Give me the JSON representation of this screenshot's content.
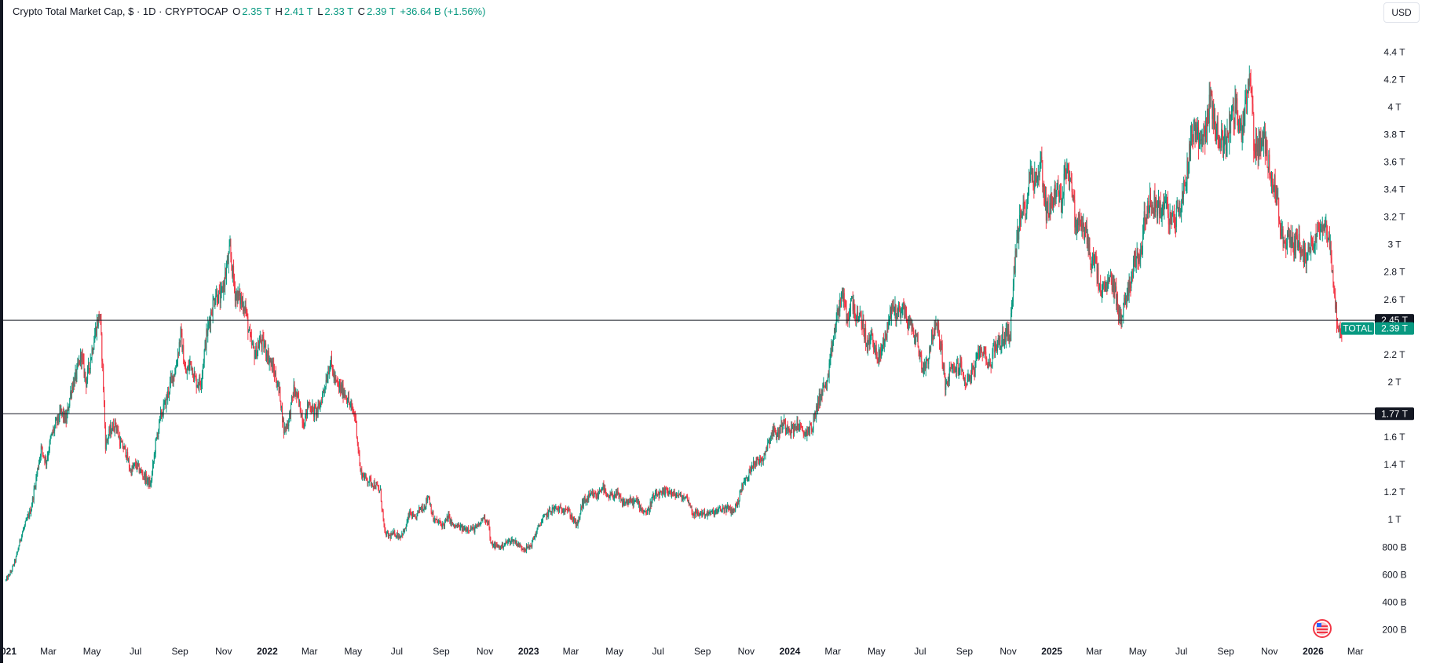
{
  "legend": {
    "title": "Crypto Total Market Cap, $ · 1D · CRYPTOCAP",
    "o_label": "O",
    "o_value": "2.35 T",
    "h_label": "H",
    "h_value": "2.41 T",
    "l_label": "L",
    "l_value": "2.33 T",
    "c_label": "C",
    "c_value": "2.39 T",
    "change": "+36.64 B (+1.56%)"
  },
  "currency_button": "USD",
  "colors": {
    "up": "#089981",
    "down": "#f23645",
    "line": "#131722",
    "axis_text": "#131722"
  },
  "chart_data": {
    "type": "candlestick",
    "symbol": "TOTAL",
    "interval": "1D",
    "y_axis_ticks": [
      "4.4 T",
      "4.2 T",
      "4 T",
      "3.8 T",
      "3.6 T",
      "3.4 T",
      "3.2 T",
      "3 T",
      "2.8 T",
      "2.6 T",
      "2.2 T",
      "2 T",
      "1.6 T",
      "1.4 T",
      "1.2 T",
      "1 T",
      "800 B",
      "600 B",
      "400 B",
      "200 B"
    ],
    "y_axis_tick_values": [
      4.4,
      4.2,
      4.0,
      3.8,
      3.6,
      3.4,
      3.2,
      3.0,
      2.8,
      2.6,
      2.2,
      2.0,
      1.6,
      1.4,
      1.2,
      1.0,
      0.8,
      0.6,
      0.4,
      0.2
    ],
    "ylim": [
      0.1,
      4.55
    ],
    "xlim": [
      "2020-12-28",
      "2026-03-26"
    ],
    "x_axis_ticks": [
      {
        "date": "2021-01-01",
        "label": "2021",
        "bold": true
      },
      {
        "date": "2021-03-01",
        "label": "Mar"
      },
      {
        "date": "2021-05-01",
        "label": "May"
      },
      {
        "date": "2021-07-01",
        "label": "Jul"
      },
      {
        "date": "2021-09-01",
        "label": "Sep"
      },
      {
        "date": "2021-11-01",
        "label": "Nov"
      },
      {
        "date": "2022-01-01",
        "label": "2022",
        "bold": true
      },
      {
        "date": "2022-03-01",
        "label": "Mar"
      },
      {
        "date": "2022-05-01",
        "label": "May"
      },
      {
        "date": "2022-07-01",
        "label": "Jul"
      },
      {
        "date": "2022-09-01",
        "label": "Sep"
      },
      {
        "date": "2022-11-01",
        "label": "Nov"
      },
      {
        "date": "2023-01-01",
        "label": "2023",
        "bold": true
      },
      {
        "date": "2023-03-01",
        "label": "Mar"
      },
      {
        "date": "2023-05-01",
        "label": "May"
      },
      {
        "date": "2023-07-01",
        "label": "Jul"
      },
      {
        "date": "2023-09-01",
        "label": "Sep"
      },
      {
        "date": "2023-11-01",
        "label": "Nov"
      },
      {
        "date": "2024-01-01",
        "label": "2024",
        "bold": true
      },
      {
        "date": "2024-03-01",
        "label": "Mar"
      },
      {
        "date": "2024-05-01",
        "label": "May"
      },
      {
        "date": "2024-07-01",
        "label": "Jul"
      },
      {
        "date": "2024-09-01",
        "label": "Sep"
      },
      {
        "date": "2024-11-01",
        "label": "Nov"
      },
      {
        "date": "2025-01-01",
        "label": "2025",
        "bold": true
      },
      {
        "date": "2025-03-01",
        "label": "Mar"
      },
      {
        "date": "2025-05-01",
        "label": "May"
      },
      {
        "date": "2025-07-01",
        "label": "Jul"
      },
      {
        "date": "2025-09-01",
        "label": "Sep"
      },
      {
        "date": "2025-11-01",
        "label": "Nov"
      },
      {
        "date": "2026-01-01",
        "label": "2026",
        "bold": true
      },
      {
        "date": "2026-03-01",
        "label": "Mar"
      }
    ],
    "horizontal_lines": [
      {
        "value": 2.45,
        "label": "2.45 T"
      },
      {
        "value": 1.77,
        "label": "1.77 T"
      }
    ],
    "last_price": {
      "name": "TOTAL",
      "value": 2.39,
      "label": "2.39 T"
    },
    "close_series": [
      [
        "2021-01-01",
        0.56
      ],
      [
        "2021-01-08",
        0.62
      ],
      [
        "2021-01-15",
        0.72
      ],
      [
        "2021-01-22",
        0.88
      ],
      [
        "2021-01-29",
        0.98
      ],
      [
        "2021-02-05",
        1.08
      ],
      [
        "2021-02-12",
        1.3
      ],
      [
        "2021-02-19",
        1.52
      ],
      [
        "2021-02-26",
        1.42
      ],
      [
        "2021-03-05",
        1.6
      ],
      [
        "2021-03-12",
        1.7
      ],
      [
        "2021-03-19",
        1.78
      ],
      [
        "2021-03-26",
        1.72
      ],
      [
        "2021-04-02",
        1.95
      ],
      [
        "2021-04-09",
        2.05
      ],
      [
        "2021-04-16",
        2.2
      ],
      [
        "2021-04-23",
        2.0
      ],
      [
        "2021-04-30",
        2.2
      ],
      [
        "2021-05-07",
        2.4
      ],
      [
        "2021-05-12",
        2.5
      ],
      [
        "2021-05-16",
        2.1
      ],
      [
        "2021-05-20",
        1.55
      ],
      [
        "2021-05-27",
        1.65
      ],
      [
        "2021-06-03",
        1.7
      ],
      [
        "2021-06-10",
        1.55
      ],
      [
        "2021-06-17",
        1.5
      ],
      [
        "2021-06-24",
        1.35
      ],
      [
        "2021-07-01",
        1.4
      ],
      [
        "2021-07-08",
        1.35
      ],
      [
        "2021-07-15",
        1.3
      ],
      [
        "2021-07-22",
        1.25
      ],
      [
        "2021-07-29",
        1.55
      ],
      [
        "2021-08-05",
        1.75
      ],
      [
        "2021-08-12",
        1.85
      ],
      [
        "2021-08-19",
        2.0
      ],
      [
        "2021-08-26",
        2.1
      ],
      [
        "2021-09-02",
        2.35
      ],
      [
        "2021-09-09",
        2.05
      ],
      [
        "2021-09-16",
        2.15
      ],
      [
        "2021-09-23",
        2.0
      ],
      [
        "2021-09-30",
        2.0
      ],
      [
        "2021-10-07",
        2.3
      ],
      [
        "2021-10-14",
        2.5
      ],
      [
        "2021-10-21",
        2.65
      ],
      [
        "2021-10-28",
        2.6
      ],
      [
        "2021-11-04",
        2.8
      ],
      [
        "2021-11-10",
        2.95
      ],
      [
        "2021-11-17",
        2.65
      ],
      [
        "2021-11-24",
        2.6
      ],
      [
        "2021-12-01",
        2.55
      ],
      [
        "2021-12-08",
        2.3
      ],
      [
        "2021-12-15",
        2.2
      ],
      [
        "2021-12-22",
        2.3
      ],
      [
        "2021-12-29",
        2.25
      ],
      [
        "2022-01-05",
        2.15
      ],
      [
        "2022-01-12",
        2.05
      ],
      [
        "2022-01-19",
        1.9
      ],
      [
        "2022-01-24",
        1.65
      ],
      [
        "2022-01-31",
        1.72
      ],
      [
        "2022-02-07",
        1.95
      ],
      [
        "2022-02-14",
        1.85
      ],
      [
        "2022-02-21",
        1.7
      ],
      [
        "2022-02-28",
        1.85
      ],
      [
        "2022-03-07",
        1.78
      ],
      [
        "2022-03-14",
        1.8
      ],
      [
        "2022-03-21",
        1.95
      ],
      [
        "2022-03-30",
        2.15
      ],
      [
        "2022-04-06",
        2.0
      ],
      [
        "2022-04-13",
        1.95
      ],
      [
        "2022-04-20",
        1.92
      ],
      [
        "2022-04-27",
        1.82
      ],
      [
        "2022-05-04",
        1.75
      ],
      [
        "2022-05-11",
        1.35
      ],
      [
        "2022-05-18",
        1.3
      ],
      [
        "2022-05-25",
        1.28
      ],
      [
        "2022-06-01",
        1.25
      ],
      [
        "2022-06-08",
        1.2
      ],
      [
        "2022-06-14",
        0.9
      ],
      [
        "2022-06-21",
        0.88
      ],
      [
        "2022-06-28",
        0.9
      ],
      [
        "2022-07-05",
        0.88
      ],
      [
        "2022-07-12",
        0.92
      ],
      [
        "2022-07-19",
        1.05
      ],
      [
        "2022-07-26",
        1.0
      ],
      [
        "2022-08-02",
        1.08
      ],
      [
        "2022-08-09",
        1.1
      ],
      [
        "2022-08-14",
        1.18
      ],
      [
        "2022-08-21",
        1.0
      ],
      [
        "2022-08-28",
        0.98
      ],
      [
        "2022-09-04",
        0.96
      ],
      [
        "2022-09-11",
        1.02
      ],
      [
        "2022-09-18",
        0.95
      ],
      [
        "2022-09-25",
        0.95
      ],
      [
        "2022-10-02",
        0.93
      ],
      [
        "2022-10-09",
        0.94
      ],
      [
        "2022-10-16",
        0.93
      ],
      [
        "2022-10-23",
        0.95
      ],
      [
        "2022-10-30",
        1.02
      ],
      [
        "2022-11-06",
        0.98
      ],
      [
        "2022-11-09",
        0.82
      ],
      [
        "2022-11-16",
        0.81
      ],
      [
        "2022-11-23",
        0.8
      ],
      [
        "2022-11-30",
        0.83
      ],
      [
        "2022-12-07",
        0.85
      ],
      [
        "2022-12-14",
        0.84
      ],
      [
        "2022-12-21",
        0.8
      ],
      [
        "2022-12-28",
        0.79
      ],
      [
        "2023-01-04",
        0.81
      ],
      [
        "2023-01-11",
        0.9
      ],
      [
        "2023-01-18",
        0.98
      ],
      [
        "2023-01-25",
        1.03
      ],
      [
        "2023-02-01",
        1.07
      ],
      [
        "2023-02-08",
        1.08
      ],
      [
        "2023-02-15",
        1.07
      ],
      [
        "2023-02-22",
        1.09
      ],
      [
        "2023-03-01",
        1.03
      ],
      [
        "2023-03-10",
        0.95
      ],
      [
        "2023-03-17",
        1.12
      ],
      [
        "2023-03-24",
        1.15
      ],
      [
        "2023-03-31",
        1.18
      ],
      [
        "2023-04-07",
        1.17
      ],
      [
        "2023-04-14",
        1.25
      ],
      [
        "2023-04-21",
        1.15
      ],
      [
        "2023-04-28",
        1.18
      ],
      [
        "2023-05-05",
        1.18
      ],
      [
        "2023-05-12",
        1.12
      ],
      [
        "2023-05-19",
        1.13
      ],
      [
        "2023-05-26",
        1.13
      ],
      [
        "2023-06-02",
        1.13
      ],
      [
        "2023-06-09",
        1.07
      ],
      [
        "2023-06-16",
        1.05
      ],
      [
        "2023-06-23",
        1.15
      ],
      [
        "2023-06-30",
        1.18
      ],
      [
        "2023-07-07",
        1.18
      ],
      [
        "2023-07-14",
        1.22
      ],
      [
        "2023-07-21",
        1.18
      ],
      [
        "2023-07-28",
        1.18
      ],
      [
        "2023-08-04",
        1.16
      ],
      [
        "2023-08-11",
        1.16
      ],
      [
        "2023-08-18",
        1.05
      ],
      [
        "2023-08-25",
        1.04
      ],
      [
        "2023-09-01",
        1.05
      ],
      [
        "2023-09-08",
        1.04
      ],
      [
        "2023-09-15",
        1.05
      ],
      [
        "2023-09-22",
        1.06
      ],
      [
        "2023-09-29",
        1.08
      ],
      [
        "2023-10-06",
        1.08
      ],
      [
        "2023-10-13",
        1.06
      ],
      [
        "2023-10-20",
        1.12
      ],
      [
        "2023-10-27",
        1.26
      ],
      [
        "2023-11-03",
        1.3
      ],
      [
        "2023-11-10",
        1.42
      ],
      [
        "2023-11-17",
        1.42
      ],
      [
        "2023-11-24",
        1.45
      ],
      [
        "2023-12-01",
        1.55
      ],
      [
        "2023-12-08",
        1.65
      ],
      [
        "2023-12-15",
        1.62
      ],
      [
        "2023-12-22",
        1.7
      ],
      [
        "2023-12-29",
        1.68
      ],
      [
        "2024-01-05",
        1.65
      ],
      [
        "2024-01-12",
        1.7
      ],
      [
        "2024-01-19",
        1.62
      ],
      [
        "2024-01-26",
        1.65
      ],
      [
        "2024-02-02",
        1.68
      ],
      [
        "2024-02-09",
        1.85
      ],
      [
        "2024-02-16",
        1.95
      ],
      [
        "2024-02-23",
        2.0
      ],
      [
        "2024-03-01",
        2.3
      ],
      [
        "2024-03-08",
        2.5
      ],
      [
        "2024-03-14",
        2.65
      ],
      [
        "2024-03-21",
        2.45
      ],
      [
        "2024-03-28",
        2.6
      ],
      [
        "2024-04-04",
        2.45
      ],
      [
        "2024-04-11",
        2.45
      ],
      [
        "2024-04-18",
        2.25
      ],
      [
        "2024-04-25",
        2.35
      ],
      [
        "2024-05-02",
        2.15
      ],
      [
        "2024-05-09",
        2.25
      ],
      [
        "2024-05-16",
        2.4
      ],
      [
        "2024-05-23",
        2.55
      ],
      [
        "2024-05-30",
        2.5
      ],
      [
        "2024-06-06",
        2.55
      ],
      [
        "2024-06-13",
        2.45
      ],
      [
        "2024-06-20",
        2.38
      ],
      [
        "2024-06-27",
        2.3
      ],
      [
        "2024-07-04",
        2.1
      ],
      [
        "2024-07-11",
        2.15
      ],
      [
        "2024-07-18",
        2.35
      ],
      [
        "2024-07-25",
        2.4
      ],
      [
        "2024-08-01",
        2.2
      ],
      [
        "2024-08-05",
        1.95
      ],
      [
        "2024-08-12",
        2.08
      ],
      [
        "2024-08-19",
        2.1
      ],
      [
        "2024-08-26",
        2.12
      ],
      [
        "2024-09-02",
        2.0
      ],
      [
        "2024-09-09",
        2.05
      ],
      [
        "2024-09-16",
        2.1
      ],
      [
        "2024-09-23",
        2.25
      ],
      [
        "2024-09-30",
        2.2
      ],
      [
        "2024-10-07",
        2.12
      ],
      [
        "2024-10-14",
        2.28
      ],
      [
        "2024-10-21",
        2.28
      ],
      [
        "2024-10-28",
        2.35
      ],
      [
        "2024-11-04",
        2.35
      ],
      [
        "2024-11-07",
        2.65
      ],
      [
        "2024-11-12",
        3.0
      ],
      [
        "2024-11-19",
        3.2
      ],
      [
        "2024-11-26",
        3.3
      ],
      [
        "2024-12-03",
        3.55
      ],
      [
        "2024-12-10",
        3.45
      ],
      [
        "2024-12-17",
        3.6
      ],
      [
        "2024-12-24",
        3.25
      ],
      [
        "2024-12-31",
        3.3
      ],
      [
        "2025-01-07",
        3.4
      ],
      [
        "2025-01-14",
        3.3
      ],
      [
        "2025-01-21",
        3.6
      ],
      [
        "2025-01-28",
        3.45
      ],
      [
        "2025-02-03",
        3.15
      ],
      [
        "2025-02-10",
        3.15
      ],
      [
        "2025-02-17",
        3.1
      ],
      [
        "2025-02-24",
        2.9
      ],
      [
        "2025-03-03",
        2.85
      ],
      [
        "2025-03-10",
        2.65
      ],
      [
        "2025-03-17",
        2.68
      ],
      [
        "2025-03-24",
        2.75
      ],
      [
        "2025-03-31",
        2.65
      ],
      [
        "2025-04-07",
        2.45
      ],
      [
        "2025-04-14",
        2.6
      ],
      [
        "2025-04-21",
        2.75
      ],
      [
        "2025-04-28",
        2.9
      ],
      [
        "2025-05-05",
        2.95
      ],
      [
        "2025-05-12",
        3.25
      ],
      [
        "2025-05-19",
        3.3
      ],
      [
        "2025-05-26",
        3.3
      ],
      [
        "2025-06-02",
        3.25
      ],
      [
        "2025-06-09",
        3.3
      ],
      [
        "2025-06-16",
        3.15
      ],
      [
        "2025-06-23",
        3.2
      ],
      [
        "2025-06-30",
        3.3
      ],
      [
        "2025-07-07",
        3.45
      ],
      [
        "2025-07-14",
        3.8
      ],
      [
        "2025-07-21",
        3.85
      ],
      [
        "2025-07-28",
        3.75
      ],
      [
        "2025-08-04",
        3.85
      ],
      [
        "2025-08-11",
        4.05
      ],
      [
        "2025-08-18",
        3.85
      ],
      [
        "2025-08-25",
        3.75
      ],
      [
        "2025-09-01",
        3.75
      ],
      [
        "2025-09-08",
        3.9
      ],
      [
        "2025-09-15",
        4.0
      ],
      [
        "2025-09-22",
        3.8
      ],
      [
        "2025-09-29",
        4.05
      ],
      [
        "2025-10-06",
        4.2
      ],
      [
        "2025-10-10",
        3.75
      ],
      [
        "2025-10-17",
        3.7
      ],
      [
        "2025-10-24",
        3.75
      ],
      [
        "2025-10-31",
        3.6
      ],
      [
        "2025-11-07",
        3.45
      ],
      [
        "2025-11-14",
        3.25
      ],
      [
        "2025-11-21",
        2.95
      ],
      [
        "2025-11-28",
        3.05
      ],
      [
        "2025-12-05",
        3.0
      ],
      [
        "2025-12-12",
        3.05
      ],
      [
        "2025-12-19",
        2.9
      ],
      [
        "2025-12-26",
        2.95
      ],
      [
        "2026-01-02",
        3.05
      ],
      [
        "2026-01-09",
        3.1
      ],
      [
        "2026-01-16",
        3.2
      ],
      [
        "2026-01-23",
        3.05
      ],
      [
        "2026-01-30",
        2.7
      ],
      [
        "2026-02-05",
        2.35
      ],
      [
        "2026-02-10",
        2.39
      ]
    ]
  }
}
